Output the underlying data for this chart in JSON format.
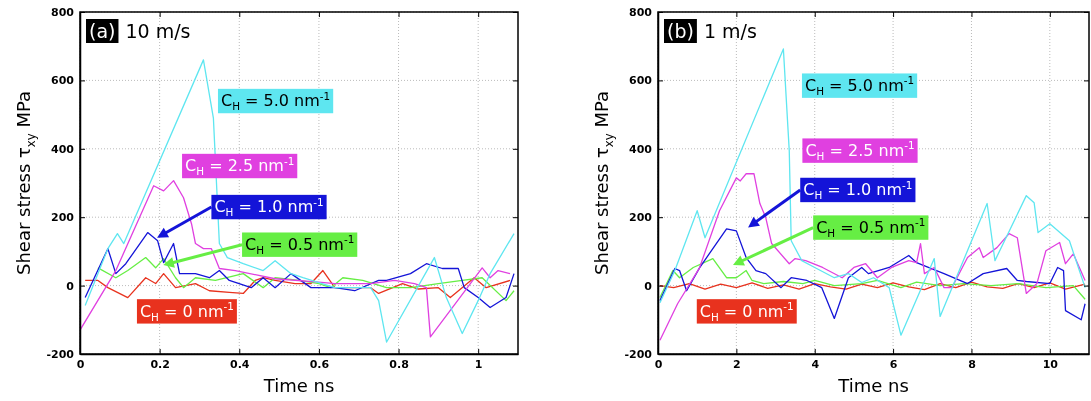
{
  "chart_data": [
    {
      "type": "line",
      "title": "(a)",
      "subtitle": "10 m/s",
      "xlabel": "Time ns",
      "ylabel": "Shear stress  τ$_{xy}$  MPa",
      "xlim": [
        0,
        1.1
      ],
      "ylim": [
        -200,
        800
      ],
      "xticks": [
        0,
        0.2,
        0.4,
        0.6,
        0.8,
        1
      ],
      "yticks": [
        -200,
        0,
        200,
        400,
        600,
        800
      ],
      "grid": true,
      "line_style": "solid",
      "marker": "none",
      "series": [
        {
          "name": "C$_{H}$ = 5.0 nm$^{-1}$",
          "color": "#5ee6f0",
          "x": [
            0.013,
            0.07,
            0.094,
            0.11,
            0.31,
            0.335,
            0.35,
            0.37,
            0.41,
            0.46,
            0.49,
            0.53,
            0.56,
            0.64,
            0.73,
            0.75,
            0.77,
            0.89,
            0.92,
            0.96,
            1.0,
            1.03,
            1.09
          ],
          "values": [
            -58,
            108,
            152,
            123,
            660,
            490,
            123,
            82,
            64,
            44,
            73,
            35,
            23,
            -6,
            -6,
            -44,
            -165,
            82,
            -35,
            -140,
            -44,
            35,
            152
          ]
        },
        {
          "name": "C$_{H}$ = 2.5 nm$^{-1}$",
          "color": "#e040e0",
          "x": [
            0.0,
            0.09,
            0.185,
            0.21,
            0.235,
            0.26,
            0.28,
            0.29,
            0.31,
            0.33,
            0.35,
            0.39,
            0.49,
            0.6,
            0.64,
            0.73,
            0.79,
            0.84,
            0.87,
            0.88,
            1.01,
            1.03,
            1.05,
            1.08
          ],
          "values": [
            -130,
            44,
            292,
            277,
            307,
            257,
            181,
            123,
            108,
            108,
            50,
            44,
            20,
            10,
            6,
            6,
            15,
            6,
            -6,
            -150,
            52,
            23,
            44,
            35
          ]
        },
        {
          "name": "C$_{H}$ = 1.0 nm$^{-1}$",
          "color": "#1414d8",
          "x": [
            0.013,
            0.07,
            0.09,
            0.115,
            0.17,
            0.195,
            0.21,
            0.235,
            0.25,
            0.29,
            0.325,
            0.35,
            0.375,
            0.43,
            0.46,
            0.49,
            0.53,
            0.58,
            0.64,
            0.69,
            0.75,
            0.77,
            0.83,
            0.87,
            0.91,
            0.95,
            0.965,
            1.0,
            1.03,
            1.07,
            1.09
          ],
          "values": [
            -35,
            108,
            35,
            64,
            155,
            131,
            67,
            123,
            35,
            35,
            23,
            44,
            15,
            -6,
            23,
            -6,
            35,
            -6,
            -6,
            -15,
            15,
            15,
            35,
            64,
            50,
            50,
            -6,
            -35,
            -64,
            -35,
            35
          ]
        },
        {
          "name": "C$_{H}$ = 0.5 nm$^{-1}$",
          "color": "#66ee44",
          "x": [
            0.045,
            0.09,
            0.12,
            0.165,
            0.19,
            0.21,
            0.24,
            0.26,
            0.29,
            0.34,
            0.41,
            0.46,
            0.49,
            0.55,
            0.6,
            0.63,
            0.66,
            0.71,
            0.77,
            0.83,
            0.9,
            0.96,
            1.01,
            1.07,
            1.09
          ],
          "values": [
            52,
            23,
            44,
            82,
            52,
            79,
            23,
            -6,
            23,
            15,
            35,
            -6,
            23,
            15,
            6,
            -6,
            23,
            15,
            -6,
            -6,
            6,
            15,
            23,
            -44,
            -15
          ]
        },
        {
          "name": "C$_{H}$ = 0 nm$^{-1}$",
          "color": "#e8321e",
          "x": [
            0.013,
            0.045,
            0.07,
            0.12,
            0.165,
            0.19,
            0.21,
            0.24,
            0.29,
            0.325,
            0.375,
            0.41,
            0.44,
            0.46,
            0.49,
            0.54,
            0.58,
            0.61,
            0.64,
            0.73,
            0.75,
            0.81,
            0.85,
            0.9,
            0.93,
            0.99,
            1.02,
            1.08
          ],
          "values": [
            15,
            15,
            -6,
            -35,
            23,
            6,
            35,
            -6,
            6,
            -15,
            -20,
            -23,
            15,
            23,
            15,
            6,
            6,
            44,
            -6,
            -6,
            -23,
            6,
            -10,
            -6,
            -35,
            23,
            -6,
            15
          ]
        }
      ]
    },
    {
      "type": "line",
      "title": "(b)",
      "subtitle": "1 m/s",
      "xlabel": "Time ns",
      "ylabel": "Shear stress  τ$_{xy}$  MPa",
      "xlim": [
        0,
        11
      ],
      "ylim": [
        -200,
        800
      ],
      "xticks": [
        0,
        2,
        4,
        6,
        8,
        10
      ],
      "yticks": [
        -200,
        0,
        200,
        400,
        600,
        800
      ],
      "grid": true,
      "line_style": "solid",
      "marker": "none",
      "series": [
        {
          "name": "C$_{H}$ = 5.0 nm$^{-1}$",
          "color": "#5ee6f0",
          "x": [
            0.05,
            0.43,
            1.0,
            1.2,
            3.2,
            3.35,
            3.4,
            3.67,
            4.0,
            4.5,
            4.86,
            5.2,
            5.5,
            5.9,
            6.2,
            7.05,
            7.2,
            8.4,
            8.6,
            9.4,
            9.6,
            9.7,
            10.0,
            10.5,
            10.9
          ],
          "values": [
            -50,
            44,
            219,
            140,
            692,
            394,
            131,
            73,
            53,
            23,
            35,
            9,
            23,
            -6,
            -145,
            79,
            -90,
            240,
            73,
            263,
            242,
            155,
            181,
            131,
            -6
          ]
        },
        {
          "name": "C$_{H}$ = 2.5 nm$^{-1}$",
          "color": "#e040e0",
          "x": [
            0.05,
            0.5,
            1.06,
            1.57,
            2.0,
            2.1,
            2.25,
            2.45,
            2.6,
            2.75,
            2.9,
            3.35,
            3.5,
            3.77,
            4.2,
            4.7,
            5.0,
            5.3,
            5.6,
            5.96,
            6.4,
            6.6,
            6.7,
            6.8,
            7.05,
            7.3,
            7.5,
            7.9,
            8.2,
            8.3,
            8.65,
            8.96,
            9.17,
            9.4,
            9.67,
            9.9,
            10.25,
            10.4,
            10.6,
            10.9
          ],
          "values": [
            -160,
            -53,
            52,
            219,
            315,
            306,
            327,
            327,
            240,
            199,
            123,
            64,
            79,
            73,
            53,
            23,
            53,
            64,
            23,
            53,
            73,
            67,
            123,
            35,
            53,
            -6,
            -6,
            82,
            111,
            82,
            111,
            152,
            140,
            -23,
            6,
            102,
            126,
            64,
            93,
            15
          ]
        },
        {
          "name": "C$_{H}$ = 1.0 nm$^{-1}$",
          "color": "#1414d8",
          "x": [
            0.05,
            0.43,
            0.55,
            0.73,
            1.06,
            1.75,
            2.0,
            2.25,
            2.5,
            2.75,
            3.14,
            3.4,
            3.8,
            4.18,
            4.5,
            4.86,
            5.2,
            5.37,
            5.9,
            6.4,
            6.6,
            6.9,
            7.3,
            7.9,
            8.3,
            8.9,
            9.17,
            9.4,
            10.0,
            10.2,
            10.35,
            10.4,
            10.8,
            10.9
          ],
          "values": [
            -44,
            50,
            44,
            -15,
            52,
            166,
            160,
            82,
            44,
            35,
            -6,
            23,
            15,
            -6,
            -96,
            23,
            53,
            35,
            53,
            88,
            67,
            53,
            35,
            6,
            35,
            50,
            15,
            12,
            6,
            53,
            44,
            -73,
            -100,
            -53
          ]
        },
        {
          "name": "C$_{H}$ = 0.5 nm$^{-1}$",
          "color": "#66ee44",
          "x": [
            0.05,
            0.38,
            0.55,
            0.9,
            1.4,
            1.75,
            2.0,
            2.25,
            2.4,
            2.7,
            3.2,
            3.7,
            4.0,
            4.5,
            5.2,
            5.6,
            6.2,
            6.6,
            7.2,
            7.8,
            8.5,
            9.2,
            9.9,
            10.6,
            10.9
          ],
          "values": [
            -35,
            44,
            23,
            53,
            79,
            23,
            23,
            44,
            15,
            6,
            12,
            6,
            15,
            0,
            6,
            15,
            -6,
            10,
            0,
            6,
            0,
            6,
            -6,
            0,
            -40
          ]
        },
        {
          "name": "C$_{H}$ = 0 nm$^{-1}$",
          "color": "#e8321e",
          "x": [
            0.05,
            0.4,
            0.8,
            1.2,
            1.6,
            2.0,
            2.4,
            2.8,
            3.2,
            3.6,
            4.0,
            4.4,
            4.8,
            5.2,
            5.6,
            6.0,
            6.4,
            6.8,
            7.2,
            7.6,
            8.0,
            8.4,
            8.8,
            9.2,
            9.6,
            10.0,
            10.4,
            10.9
          ],
          "values": [
            0,
            -6,
            6,
            -10,
            4,
            -6,
            8,
            -8,
            2,
            -10,
            6,
            -4,
            -10,
            4,
            -6,
            8,
            -4,
            -12,
            6,
            -6,
            10,
            -4,
            -8,
            6,
            -6,
            8,
            -10,
            4
          ]
        }
      ]
    }
  ]
}
